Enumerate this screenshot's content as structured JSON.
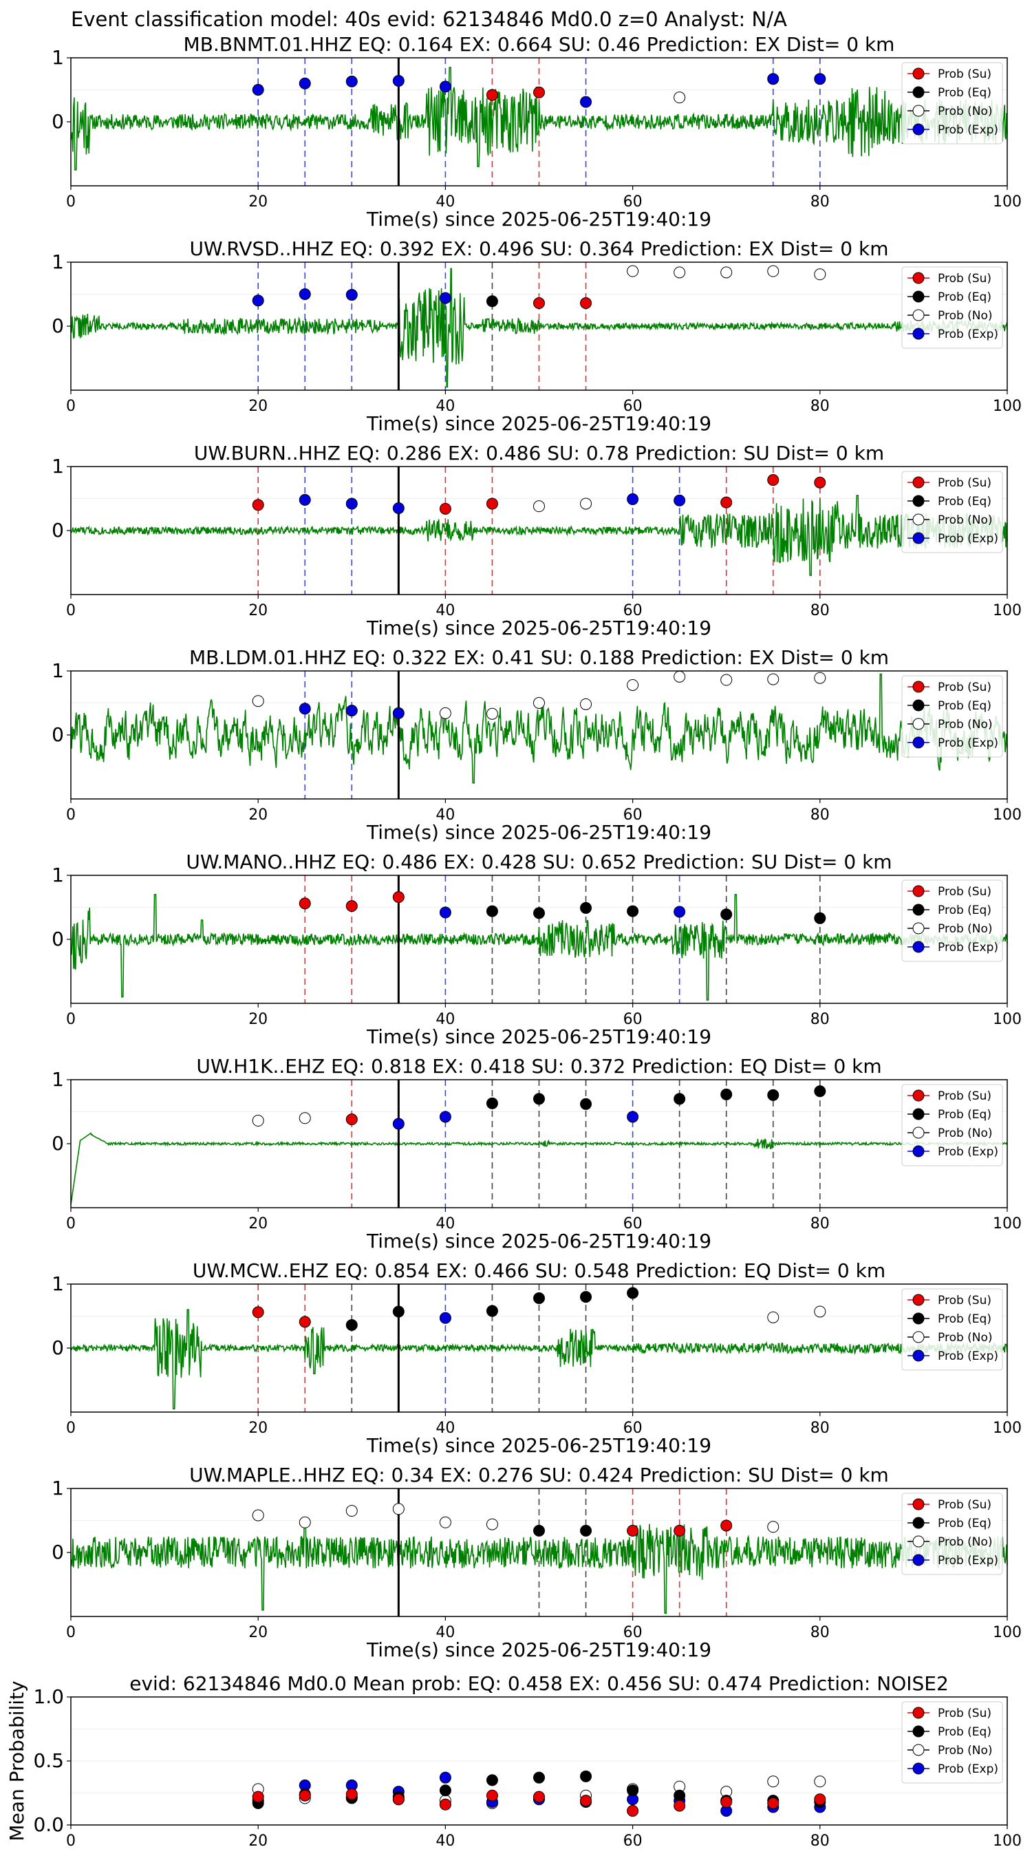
{
  "suptitle": "Event classification model: 40s evid: 62134846 Md0.0 z=0 Analyst: N/A",
  "legend_labels": [
    "Prob (Su)",
    "Prob (Eq)",
    "Prob (No)",
    "Prob (Exp)"
  ],
  "colors": {
    "su": "#e60000",
    "eq": "#000000",
    "no": "#ffffff",
    "exp": "#0000dd",
    "trace": "#008000",
    "su_line": "#e03030",
    "eq_line": "#444444",
    "exp_line": "#3344ee"
  },
  "chart_data": [
    {
      "type": "line",
      "title": "MB.BNMT.01.HHZ   EQ: 0.164  EX: 0.664  SU: 0.46   Prediction: EX    Dist= 0 km",
      "xlabel": "Time(s) since 2025-06-25T19:40:19",
      "ylabel": "",
      "xlim": [
        0,
        100
      ],
      "xticks": [
        "0",
        "20",
        "40",
        "60",
        "80",
        "100"
      ],
      "ylim": [
        -1,
        1
      ],
      "yticks": [
        "0",
        "1"
      ],
      "origin_line": 35,
      "waveform": {
        "seed": 11,
        "base": 0.12,
        "bursts": [
          [
            0,
            2,
            0.55
          ],
          [
            32,
            36,
            0.3
          ],
          [
            38,
            50,
            0.55
          ],
          [
            75,
            100,
            0.35
          ],
          [
            83,
            87,
            0.55
          ]
        ],
        "spikes": [
          [
            0.5,
            -0.75
          ],
          [
            40.5,
            0.85
          ],
          [
            43.5,
            -0.7
          ]
        ]
      },
      "points": [
        {
          "t": 20,
          "p": 0.5,
          "cls": "exp"
        },
        {
          "t": 25,
          "p": 0.6,
          "cls": "exp"
        },
        {
          "t": 30,
          "p": 0.63,
          "cls": "exp"
        },
        {
          "t": 35,
          "p": 0.64,
          "cls": "exp"
        },
        {
          "t": 40,
          "p": 0.55,
          "cls": "exp"
        },
        {
          "t": 45,
          "p": 0.42,
          "cls": "su"
        },
        {
          "t": 50,
          "p": 0.46,
          "cls": "su"
        },
        {
          "t": 55,
          "p": 0.31,
          "cls": "exp"
        },
        {
          "t": 65,
          "p": 0.38,
          "cls": "no"
        },
        {
          "t": 75,
          "p": 0.67,
          "cls": "exp"
        },
        {
          "t": 80,
          "p": 0.67,
          "cls": "exp"
        }
      ]
    },
    {
      "type": "line",
      "title": "UW.RVSD..HHZ   EQ: 0.392  EX: 0.496  SU: 0.364   Prediction: EX    Dist= 0 km",
      "xlabel": "Time(s) since 2025-06-25T19:40:19",
      "ylabel": "",
      "xlim": [
        0,
        100
      ],
      "xticks": [
        "0",
        "20",
        "40",
        "60",
        "80",
        "100"
      ],
      "ylim": [
        -1,
        1
      ],
      "yticks": [
        "0",
        "1"
      ],
      "origin_line": 35,
      "waveform": {
        "seed": 22,
        "base": 0.05,
        "bursts": [
          [
            0,
            3,
            0.2
          ],
          [
            12,
            33,
            0.12
          ],
          [
            35,
            42,
            0.6
          ],
          [
            44,
            50,
            0.12
          ],
          [
            88,
            100,
            0.09
          ]
        ],
        "spikes": [
          [
            40.2,
            -0.95
          ],
          [
            40.6,
            0.9
          ]
        ]
      },
      "points": [
        {
          "t": 20,
          "p": 0.4,
          "cls": "exp"
        },
        {
          "t": 25,
          "p": 0.5,
          "cls": "exp"
        },
        {
          "t": 30,
          "p": 0.49,
          "cls": "exp"
        },
        {
          "t": 40,
          "p": 0.44,
          "cls": "exp"
        },
        {
          "t": 45,
          "p": 0.39,
          "cls": "eq"
        },
        {
          "t": 50,
          "p": 0.36,
          "cls": "su"
        },
        {
          "t": 55,
          "p": 0.36,
          "cls": "su"
        },
        {
          "t": 60,
          "p": 0.86,
          "cls": "no"
        },
        {
          "t": 65,
          "p": 0.84,
          "cls": "no"
        },
        {
          "t": 70,
          "p": 0.84,
          "cls": "no"
        },
        {
          "t": 75,
          "p": 0.86,
          "cls": "no"
        },
        {
          "t": 80,
          "p": 0.81,
          "cls": "no"
        }
      ]
    },
    {
      "type": "line",
      "title": "UW.BURN..HHZ   EQ: 0.286  EX: 0.486  SU: 0.78   Prediction: SU    Dist= 0 km",
      "xlabel": "Time(s) since 2025-06-25T19:40:19",
      "ylabel": "",
      "xlim": [
        0,
        100
      ],
      "xticks": [
        "0",
        "20",
        "40",
        "60",
        "80",
        "100"
      ],
      "ylim": [
        -1,
        1
      ],
      "yticks": [
        "0",
        "1"
      ],
      "origin_line": 35,
      "waveform": {
        "seed": 33,
        "base": 0.06,
        "bursts": [
          [
            38,
            43,
            0.18
          ],
          [
            65,
            100,
            0.28
          ],
          [
            75,
            82,
            0.5
          ]
        ],
        "spikes": [
          [
            79,
            -0.7
          ],
          [
            84,
            0.55
          ]
        ]
      },
      "points": [
        {
          "t": 20,
          "p": 0.4,
          "cls": "su"
        },
        {
          "t": 25,
          "p": 0.48,
          "cls": "exp"
        },
        {
          "t": 30,
          "p": 0.42,
          "cls": "exp"
        },
        {
          "t": 35,
          "p": 0.35,
          "cls": "exp"
        },
        {
          "t": 40,
          "p": 0.34,
          "cls": "su"
        },
        {
          "t": 45,
          "p": 0.42,
          "cls": "su"
        },
        {
          "t": 50,
          "p": 0.38,
          "cls": "no"
        },
        {
          "t": 55,
          "p": 0.42,
          "cls": "no"
        },
        {
          "t": 60,
          "p": 0.49,
          "cls": "exp"
        },
        {
          "t": 65,
          "p": 0.47,
          "cls": "exp"
        },
        {
          "t": 70,
          "p": 0.44,
          "cls": "su"
        },
        {
          "t": 75,
          "p": 0.79,
          "cls": "su"
        },
        {
          "t": 80,
          "p": 0.75,
          "cls": "su"
        }
      ]
    },
    {
      "type": "line",
      "title": "MB.LDM.01.HHZ   EQ: 0.322  EX: 0.41  SU: 0.188   Prediction: EX    Dist= 0 km",
      "xlabel": "Time(s) since 2025-06-25T19:40:19",
      "ylabel": "",
      "xlim": [
        0,
        100
      ],
      "xticks": [
        "0",
        "20",
        "40",
        "60",
        "80",
        "100"
      ],
      "ylim": [
        -1,
        1
      ],
      "yticks": [
        "0",
        "1"
      ],
      "origin_line": 35,
      "waveform": {
        "seed": 44,
        "base": 0.38,
        "smooth": true,
        "bursts": [],
        "spikes": [
          [
            86.5,
            0.95
          ],
          [
            43,
            -0.75
          ]
        ]
      },
      "points": [
        {
          "t": 20,
          "p": 0.53,
          "cls": "no"
        },
        {
          "t": 25,
          "p": 0.41,
          "cls": "exp"
        },
        {
          "t": 30,
          "p": 0.38,
          "cls": "exp"
        },
        {
          "t": 35,
          "p": 0.34,
          "cls": "exp"
        },
        {
          "t": 40,
          "p": 0.34,
          "cls": "no"
        },
        {
          "t": 45,
          "p": 0.33,
          "cls": "no"
        },
        {
          "t": 50,
          "p": 0.5,
          "cls": "no"
        },
        {
          "t": 55,
          "p": 0.48,
          "cls": "no"
        },
        {
          "t": 60,
          "p": 0.78,
          "cls": "no"
        },
        {
          "t": 65,
          "p": 0.91,
          "cls": "no"
        },
        {
          "t": 70,
          "p": 0.86,
          "cls": "no"
        },
        {
          "t": 75,
          "p": 0.87,
          "cls": "no"
        },
        {
          "t": 80,
          "p": 0.89,
          "cls": "no"
        }
      ]
    },
    {
      "type": "line",
      "title": "UW.MANO..HHZ   EQ: 0.486  EX: 0.428  SU: 0.652   Prediction: SU    Dist= 0 km",
      "xlabel": "Time(s) since 2025-06-25T19:40:19",
      "ylabel": "",
      "xlim": [
        0,
        100
      ],
      "xticks": [
        "0",
        "20",
        "40",
        "60",
        "80",
        "100"
      ],
      "ylim": [
        -1,
        1
      ],
      "yticks": [
        "0",
        "1"
      ],
      "origin_line": 35,
      "waveform": {
        "seed": 55,
        "base": 0.09,
        "bursts": [
          [
            0,
            2,
            0.5
          ],
          [
            50,
            58,
            0.3
          ],
          [
            64,
            70,
            0.3
          ]
        ],
        "spikes": [
          [
            5.5,
            -0.9
          ],
          [
            9,
            0.7
          ],
          [
            68,
            -0.95
          ],
          [
            71,
            0.7
          ],
          [
            14,
            0.3
          ]
        ]
      },
      "points": [
        {
          "t": 25,
          "p": 0.56,
          "cls": "su"
        },
        {
          "t": 30,
          "p": 0.52,
          "cls": "su"
        },
        {
          "t": 35,
          "p": 0.66,
          "cls": "su"
        },
        {
          "t": 40,
          "p": 0.42,
          "cls": "exp"
        },
        {
          "t": 45,
          "p": 0.44,
          "cls": "eq"
        },
        {
          "t": 50,
          "p": 0.41,
          "cls": "eq"
        },
        {
          "t": 55,
          "p": 0.49,
          "cls": "eq"
        },
        {
          "t": 60,
          "p": 0.44,
          "cls": "eq"
        },
        {
          "t": 65,
          "p": 0.43,
          "cls": "exp"
        },
        {
          "t": 70,
          "p": 0.39,
          "cls": "eq"
        },
        {
          "t": 80,
          "p": 0.33,
          "cls": "eq"
        }
      ]
    },
    {
      "type": "line",
      "title": "UW.H1K..EHZ   EQ: 0.818  EX: 0.418  SU: 0.372   Prediction: EQ    Dist= 0 km",
      "xlabel": "Time(s) since 2025-06-25T19:40:19",
      "ylabel": "",
      "xlim": [
        0,
        100
      ],
      "xticks": [
        "0",
        "20",
        "40",
        "60",
        "80",
        "100"
      ],
      "ylim": [
        -1,
        1
      ],
      "yticks": [
        "0",
        "1"
      ],
      "origin_line": 35,
      "waveform": {
        "seed": 66,
        "base": 0.02,
        "h1k": true,
        "bursts": [
          [
            50,
            51,
            0.05
          ],
          [
            73,
            75,
            0.08
          ]
        ],
        "spikes": []
      },
      "points": [
        {
          "t": 20,
          "p": 0.36,
          "cls": "no"
        },
        {
          "t": 25,
          "p": 0.4,
          "cls": "no"
        },
        {
          "t": 30,
          "p": 0.38,
          "cls": "su"
        },
        {
          "t": 35,
          "p": 0.31,
          "cls": "exp"
        },
        {
          "t": 40,
          "p": 0.42,
          "cls": "exp"
        },
        {
          "t": 45,
          "p": 0.63,
          "cls": "eq"
        },
        {
          "t": 50,
          "p": 0.7,
          "cls": "eq"
        },
        {
          "t": 55,
          "p": 0.62,
          "cls": "eq"
        },
        {
          "t": 60,
          "p": 0.42,
          "cls": "exp"
        },
        {
          "t": 65,
          "p": 0.7,
          "cls": "eq"
        },
        {
          "t": 70,
          "p": 0.77,
          "cls": "eq"
        },
        {
          "t": 75,
          "p": 0.76,
          "cls": "eq"
        },
        {
          "t": 80,
          "p": 0.82,
          "cls": "eq"
        }
      ]
    },
    {
      "type": "line",
      "title": "UW.MCW..EHZ   EQ: 0.854  EX: 0.466  SU: 0.548   Prediction: EQ    Dist= 0 km",
      "xlabel": "Time(s) since 2025-06-25T19:40:19",
      "ylabel": "",
      "xlim": [
        0,
        100
      ],
      "xticks": [
        "0",
        "20",
        "40",
        "60",
        "80",
        "100"
      ],
      "ylim": [
        -1,
        1
      ],
      "yticks": [
        "0",
        "1"
      ],
      "origin_line": 35,
      "waveform": {
        "seed": 77,
        "base": 0.05,
        "bursts": [
          [
            9,
            14,
            0.5
          ],
          [
            25,
            27,
            0.35
          ],
          [
            52,
            56,
            0.3
          ],
          [
            60,
            100,
            0.08
          ]
        ],
        "spikes": [
          [
            11,
            -0.95
          ],
          [
            12.5,
            0.6
          ],
          [
            26,
            -0.4
          ]
        ]
      },
      "points": [
        {
          "t": 20,
          "p": 0.56,
          "cls": "su"
        },
        {
          "t": 25,
          "p": 0.41,
          "cls": "su"
        },
        {
          "t": 30,
          "p": 0.36,
          "cls": "eq"
        },
        {
          "t": 35,
          "p": 0.57,
          "cls": "eq"
        },
        {
          "t": 40,
          "p": 0.47,
          "cls": "exp"
        },
        {
          "t": 45,
          "p": 0.58,
          "cls": "eq"
        },
        {
          "t": 50,
          "p": 0.78,
          "cls": "eq"
        },
        {
          "t": 55,
          "p": 0.8,
          "cls": "eq"
        },
        {
          "t": 60,
          "p": 0.86,
          "cls": "eq"
        },
        {
          "t": 75,
          "p": 0.48,
          "cls": "no"
        },
        {
          "t": 80,
          "p": 0.57,
          "cls": "no"
        }
      ]
    },
    {
      "type": "line",
      "title": "UW.MAPLE..HHZ   EQ: 0.34  EX: 0.276  SU: 0.424   Prediction: SU    Dist= 0 km",
      "xlabel": "Time(s) since 2025-06-25T19:40:19",
      "ylabel": "",
      "xlim": [
        0,
        100
      ],
      "xticks": [
        "0",
        "20",
        "40",
        "60",
        "80",
        "100"
      ],
      "ylim": [
        -1,
        1
      ],
      "yticks": [
        "0",
        "1"
      ],
      "origin_line": 35,
      "waveform": {
        "seed": 88,
        "base": 0.25,
        "bursts": [
          [
            60,
            68,
            0.45
          ]
        ],
        "spikes": [
          [
            20.5,
            -0.9
          ],
          [
            63.5,
            -0.95
          ],
          [
            25,
            0.55
          ]
        ]
      },
      "points": [
        {
          "t": 20,
          "p": 0.58,
          "cls": "no"
        },
        {
          "t": 25,
          "p": 0.47,
          "cls": "no"
        },
        {
          "t": 30,
          "p": 0.65,
          "cls": "no"
        },
        {
          "t": 35,
          "p": 0.68,
          "cls": "no"
        },
        {
          "t": 40,
          "p": 0.47,
          "cls": "no"
        },
        {
          "t": 45,
          "p": 0.44,
          "cls": "no"
        },
        {
          "t": 50,
          "p": 0.34,
          "cls": "eq"
        },
        {
          "t": 55,
          "p": 0.34,
          "cls": "eq"
        },
        {
          "t": 60,
          "p": 0.34,
          "cls": "su"
        },
        {
          "t": 65,
          "p": 0.34,
          "cls": "su"
        },
        {
          "t": 70,
          "p": 0.42,
          "cls": "su"
        },
        {
          "t": 75,
          "p": 0.4,
          "cls": "no"
        }
      ]
    },
    {
      "type": "scatter",
      "title": "evid: 62134846  Md0.0   Mean prob:    EQ: 0.458  EX: 0.456  SU: 0.474   Prediction: NOISE2",
      "xlabel": "",
      "ylabel": "Mean Probability",
      "xlim": [
        0,
        100
      ],
      "xticks": [
        "0",
        "20",
        "40",
        "60",
        "80",
        "100"
      ],
      "ylim": [
        0,
        1
      ],
      "yticks": [
        "0.0",
        "0.5",
        "1.0"
      ],
      "mean_points": [
        {
          "t": 20,
          "su": 0.22,
          "eq": 0.17,
          "no": 0.28,
          "exp": 0.19
        },
        {
          "t": 25,
          "su": 0.23,
          "eq": 0.24,
          "no": 0.21,
          "exp": 0.31
        },
        {
          "t": 30,
          "su": 0.24,
          "eq": 0.21,
          "no": 0.22,
          "exp": 0.31
        },
        {
          "t": 35,
          "su": 0.2,
          "eq": 0.22,
          "no": 0.2,
          "exp": 0.26
        },
        {
          "t": 40,
          "su": 0.16,
          "eq": 0.27,
          "no": 0.19,
          "exp": 0.37
        },
        {
          "t": 45,
          "su": 0.23,
          "eq": 0.35,
          "no": 0.17,
          "exp": 0.18
        },
        {
          "t": 50,
          "su": 0.22,
          "eq": 0.37,
          "no": 0.21,
          "exp": 0.2
        },
        {
          "t": 55,
          "su": 0.19,
          "eq": 0.38,
          "no": 0.23,
          "exp": 0.18
        },
        {
          "t": 60,
          "su": 0.11,
          "eq": 0.27,
          "no": 0.28,
          "exp": 0.2
        },
        {
          "t": 65,
          "su": 0.15,
          "eq": 0.23,
          "no": 0.3,
          "exp": 0.19
        },
        {
          "t": 70,
          "su": 0.18,
          "eq": 0.19,
          "no": 0.26,
          "exp": 0.11
        },
        {
          "t": 75,
          "su": 0.17,
          "eq": 0.19,
          "no": 0.34,
          "exp": 0.14
        },
        {
          "t": 80,
          "su": 0.2,
          "eq": 0.18,
          "no": 0.34,
          "exp": 0.14
        }
      ]
    }
  ]
}
